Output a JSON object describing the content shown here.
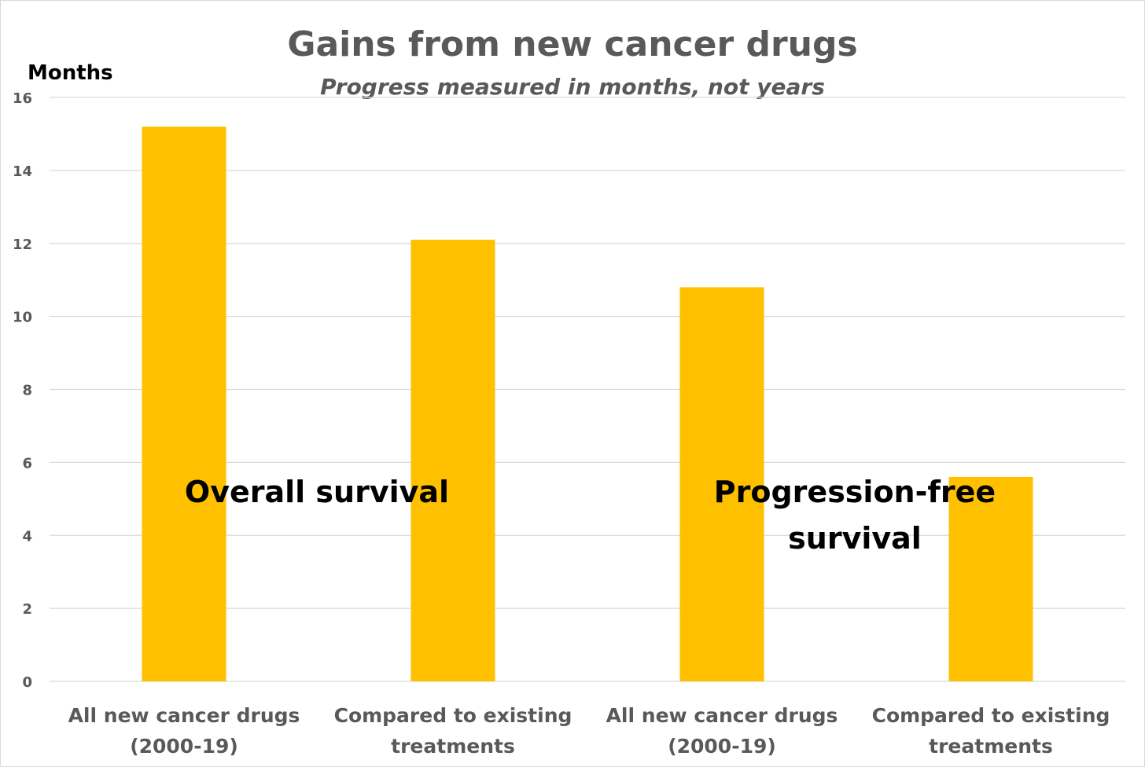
{
  "chart_data": {
    "type": "bar",
    "title": "Gains from new cancer drugs",
    "subtitle": "Progress measured in months, not years",
    "ylabel": "Months",
    "xlabel": "",
    "ylim": [
      0,
      16
    ],
    "yticks": [
      0,
      2,
      4,
      6,
      8,
      10,
      12,
      14,
      16
    ],
    "grid": true,
    "bar_color": "#FFC000",
    "categories": [
      [
        "All new cancer drugs",
        "(2000-19)"
      ],
      [
        "Compared to existing",
        "treatments"
      ],
      [
        "All new cancer drugs",
        "(2000-19)"
      ],
      [
        "Compared to existing",
        "treatments"
      ]
    ],
    "values": [
      15.2,
      12.1,
      10.8,
      5.6
    ],
    "annotations": [
      {
        "lines": [
          "Overall survival"
        ]
      },
      {
        "lines": [
          "Progression-free",
          "survival"
        ]
      }
    ]
  }
}
